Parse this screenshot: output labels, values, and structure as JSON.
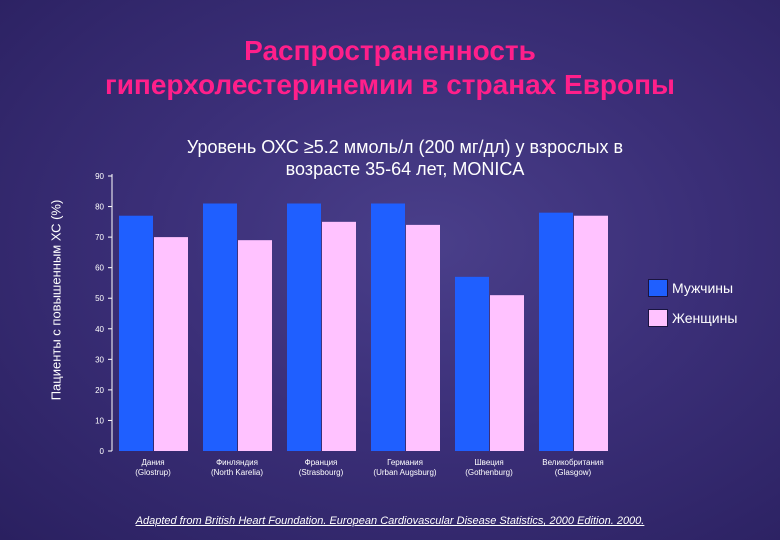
{
  "title_line1": "Распространенность",
  "title_line2": "гиперхолестеринемии в странах Европы",
  "subtitle_line1": "Уровень ОХС ≥5.2 ммоль/л (200 мг/дл) у взрослых в",
  "subtitle_line2": "возрасте 35-64 лет, MONICA",
  "source": "Adapted from British Heart Foundation. European Cardiovascular Disease Statistics, 2000 Edition. 2000.",
  "colors": {
    "men": "#1f5fff",
    "women": "#ffc2ff",
    "title": "#ff1f8a"
  },
  "chart_data": {
    "type": "bar",
    "title": "Распространенность гиперхолестеринемии в странах Европы",
    "ylabel": "Пациенты с повышенным ХС (%)",
    "ylim": [
      0,
      90
    ],
    "yticks": [
      0,
      10,
      20,
      30,
      40,
      50,
      60,
      70,
      80,
      90
    ],
    "categories": [
      [
        "Дания",
        "(Glostrup)"
      ],
      [
        "Финляндия",
        "(North Karelia)"
      ],
      [
        "Франция",
        "(Strasbourg)"
      ],
      [
        "Германия",
        "(Urban Augsburg)"
      ],
      [
        "Швеция",
        "(Gothenburg)"
      ],
      [
        "Великобритания",
        "(Glasgow)"
      ]
    ],
    "series": [
      {
        "name": "Мужчины",
        "color": "#1f5fff",
        "values": [
          77,
          81,
          81,
          81,
          57,
          78
        ]
      },
      {
        "name": "Женщины",
        "color": "#ffc2ff",
        "values": [
          70,
          69,
          75,
          74,
          51,
          77
        ]
      }
    ],
    "legend_position": "right",
    "grid": false
  }
}
